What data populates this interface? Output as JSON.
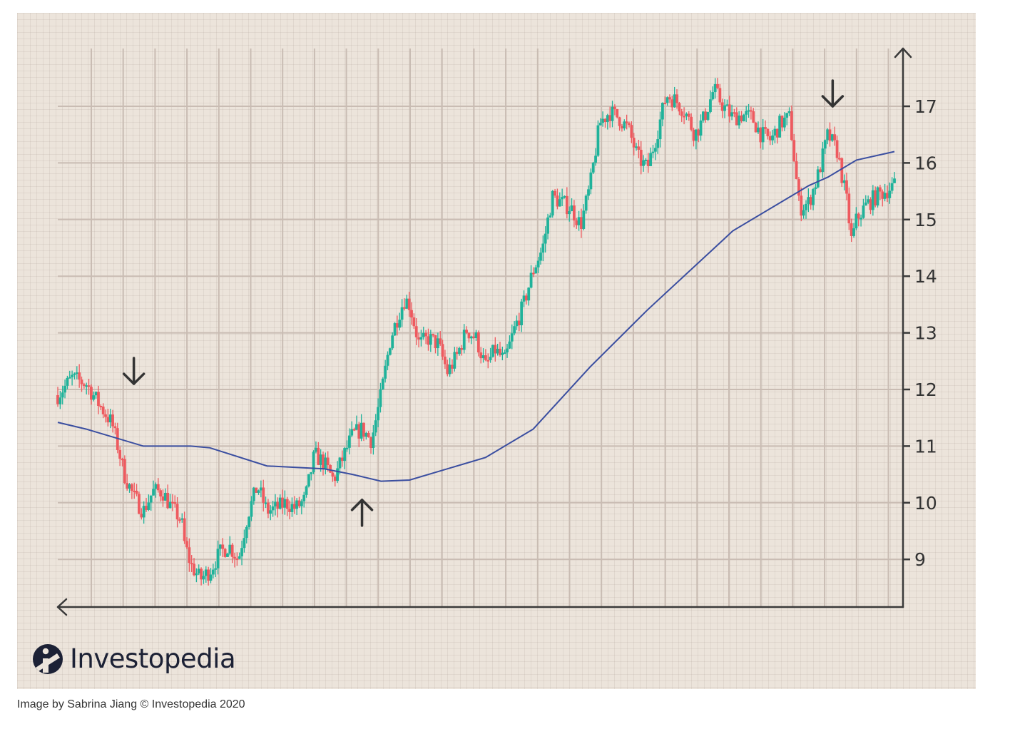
{
  "caption": "Image by Sabrina Jiang © Investopedia 2020",
  "logo": {
    "text": "Investopedia",
    "icon": "investopedia-logo-icon",
    "brand_color": "#1c2135"
  },
  "colors": {
    "up": "#20b29a",
    "down": "#ee5a5f",
    "moving_average": "#3a4ea0",
    "axis": "#3a3a3a",
    "background": "#ece4db"
  },
  "chart_data": {
    "type": "candlestick",
    "title": "",
    "xlabel": "",
    "ylabel": "",
    "ylim": [
      8.2,
      17.9
    ],
    "yticks": [
      9,
      10,
      11,
      12,
      13,
      14,
      15,
      16,
      17
    ],
    "grid": true,
    "x_axis_tick_labels": "none",
    "price_path": [
      [
        0,
        11.9
      ],
      [
        1.5,
        12.2
      ],
      [
        3,
        12.1
      ],
      [
        4.5,
        11.7
      ],
      [
        5.7,
        11.4
      ],
      [
        6.3,
        11.0
      ],
      [
        7,
        10.5
      ],
      [
        8,
        10.1
      ],
      [
        9,
        9.85
      ],
      [
        10,
        10.2
      ],
      [
        11,
        10.2
      ],
      [
        12,
        9.9
      ],
      [
        13,
        9.7
      ],
      [
        13.3,
        9.3
      ],
      [
        14,
        8.9
      ],
      [
        15,
        8.65
      ],
      [
        16,
        8.8
      ],
      [
        17,
        9.1
      ],
      [
        18,
        9.25
      ],
      [
        19,
        9.0
      ],
      [
        20,
        9.8
      ],
      [
        21,
        10.3
      ],
      [
        22,
        9.85
      ],
      [
        23,
        9.9
      ],
      [
        24,
        10.0
      ],
      [
        25,
        9.9
      ],
      [
        26,
        10.05
      ],
      [
        27,
        10.85
      ],
      [
        28,
        10.7
      ],
      [
        29,
        10.4
      ],
      [
        30,
        10.8
      ],
      [
        31,
        11.2
      ],
      [
        32,
        11.3
      ],
      [
        33,
        11.1
      ],
      [
        34,
        11.9
      ],
      [
        35,
        12.9
      ],
      [
        36,
        13.4
      ],
      [
        36.5,
        13.6
      ],
      [
        37,
        13.5
      ],
      [
        38,
        12.8
      ],
      [
        39,
        12.9
      ],
      [
        40,
        12.8
      ],
      [
        41,
        12.3
      ],
      [
        42,
        12.6
      ],
      [
        43,
        13.05
      ],
      [
        44,
        12.9
      ],
      [
        45,
        12.4
      ],
      [
        46,
        12.7
      ],
      [
        47,
        12.5
      ],
      [
        48,
        13.05
      ],
      [
        49,
        13.5
      ],
      [
        50,
        14.1
      ],
      [
        51,
        14.5
      ],
      [
        52,
        15.4
      ],
      [
        53,
        15.3
      ],
      [
        54,
        15.2
      ],
      [
        55,
        14.9
      ],
      [
        56,
        15.6
      ],
      [
        57,
        16.7
      ],
      [
        58,
        16.9
      ],
      [
        59,
        16.8
      ],
      [
        60,
        16.6
      ],
      [
        61,
        16.1
      ],
      [
        62,
        15.9
      ],
      [
        63,
        16.5
      ],
      [
        64,
        17.2
      ],
      [
        65,
        17.1
      ],
      [
        66,
        16.9
      ],
      [
        67,
        16.5
      ],
      [
        68,
        16.8
      ],
      [
        69,
        17.3
      ],
      [
        70,
        17.0
      ],
      [
        71,
        16.8
      ],
      [
        72,
        16.85
      ],
      [
        73,
        16.8
      ],
      [
        74,
        16.5
      ],
      [
        75,
        16.4
      ],
      [
        76,
        16.7
      ],
      [
        77,
        16.8
      ],
      [
        78,
        15.2
      ],
      [
        79,
        15.3
      ],
      [
        80,
        15.8
      ],
      [
        81,
        16.5
      ],
      [
        82,
        16.2
      ],
      [
        83,
        15.3
      ],
      [
        83.5,
        14.6
      ],
      [
        84,
        15.0
      ],
      [
        85,
        15.25
      ],
      [
        86,
        15.4
      ],
      [
        87,
        15.5
      ],
      [
        88,
        15.6
      ]
    ],
    "series": [
      {
        "name": "",
        "type": "line",
        "x": [
          0,
          3,
          9,
          14,
          16,
          22,
          28,
          31,
          34,
          37,
          45,
          50,
          56,
          62,
          71,
          79,
          81,
          84,
          88
        ],
        "values": [
          11.42,
          11.3,
          11.0,
          11.0,
          10.97,
          10.65,
          10.6,
          10.5,
          10.38,
          10.4,
          10.8,
          11.3,
          12.4,
          13.4,
          14.8,
          15.6,
          15.75,
          16.05,
          16.2
        ]
      }
    ],
    "annotations": [
      {
        "type": "arrow",
        "direction": "down",
        "at": [
          8,
          12.1
        ]
      },
      {
        "type": "arrow",
        "direction": "up",
        "at": [
          32,
          10.05
        ]
      },
      {
        "type": "arrow",
        "direction": "down",
        "at": [
          81.5,
          17.0
        ]
      }
    ]
  }
}
